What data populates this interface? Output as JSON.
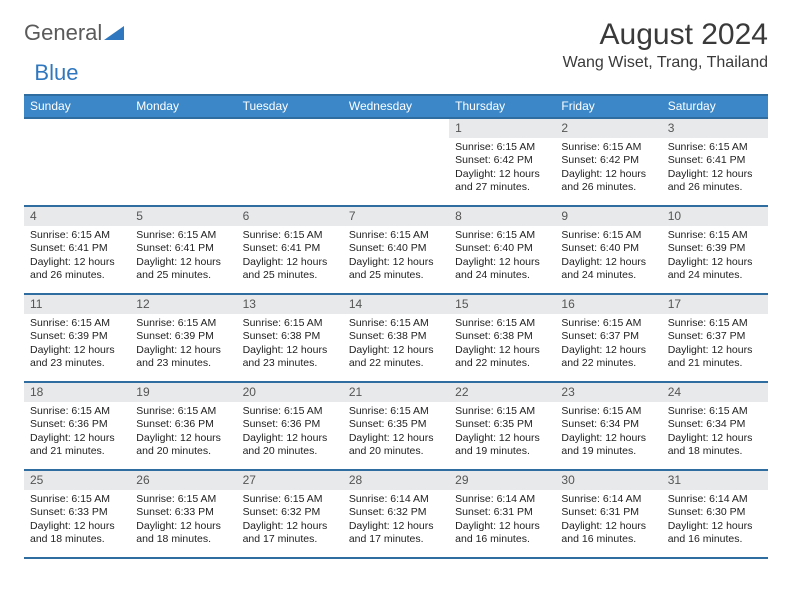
{
  "logo": {
    "text1": "General",
    "text2": "Blue",
    "triangle_color": "#2f78bf"
  },
  "title": {
    "month": "August 2024",
    "location": "Wang Wiset, Trang, Thailand"
  },
  "colors": {
    "header_bg": "#3b87c8",
    "header_border": "#2f6ca0",
    "daynum_bg": "#e7e9ea",
    "text": "#222222"
  },
  "weekdays": [
    "Sunday",
    "Monday",
    "Tuesday",
    "Wednesday",
    "Thursday",
    "Friday",
    "Saturday"
  ],
  "grid": {
    "leading_blanks": 4,
    "days": [
      {
        "n": 1,
        "sunrise": "6:15 AM",
        "sunset": "6:42 PM",
        "daylight": "12 hours and 27 minutes."
      },
      {
        "n": 2,
        "sunrise": "6:15 AM",
        "sunset": "6:42 PM",
        "daylight": "12 hours and 26 minutes."
      },
      {
        "n": 3,
        "sunrise": "6:15 AM",
        "sunset": "6:41 PM",
        "daylight": "12 hours and 26 minutes."
      },
      {
        "n": 4,
        "sunrise": "6:15 AM",
        "sunset": "6:41 PM",
        "daylight": "12 hours and 26 minutes."
      },
      {
        "n": 5,
        "sunrise": "6:15 AM",
        "sunset": "6:41 PM",
        "daylight": "12 hours and 25 minutes."
      },
      {
        "n": 6,
        "sunrise": "6:15 AM",
        "sunset": "6:41 PM",
        "daylight": "12 hours and 25 minutes."
      },
      {
        "n": 7,
        "sunrise": "6:15 AM",
        "sunset": "6:40 PM",
        "daylight": "12 hours and 25 minutes."
      },
      {
        "n": 8,
        "sunrise": "6:15 AM",
        "sunset": "6:40 PM",
        "daylight": "12 hours and 24 minutes."
      },
      {
        "n": 9,
        "sunrise": "6:15 AM",
        "sunset": "6:40 PM",
        "daylight": "12 hours and 24 minutes."
      },
      {
        "n": 10,
        "sunrise": "6:15 AM",
        "sunset": "6:39 PM",
        "daylight": "12 hours and 24 minutes."
      },
      {
        "n": 11,
        "sunrise": "6:15 AM",
        "sunset": "6:39 PM",
        "daylight": "12 hours and 23 minutes."
      },
      {
        "n": 12,
        "sunrise": "6:15 AM",
        "sunset": "6:39 PM",
        "daylight": "12 hours and 23 minutes."
      },
      {
        "n": 13,
        "sunrise": "6:15 AM",
        "sunset": "6:38 PM",
        "daylight": "12 hours and 23 minutes."
      },
      {
        "n": 14,
        "sunrise": "6:15 AM",
        "sunset": "6:38 PM",
        "daylight": "12 hours and 22 minutes."
      },
      {
        "n": 15,
        "sunrise": "6:15 AM",
        "sunset": "6:38 PM",
        "daylight": "12 hours and 22 minutes."
      },
      {
        "n": 16,
        "sunrise": "6:15 AM",
        "sunset": "6:37 PM",
        "daylight": "12 hours and 22 minutes."
      },
      {
        "n": 17,
        "sunrise": "6:15 AM",
        "sunset": "6:37 PM",
        "daylight": "12 hours and 21 minutes."
      },
      {
        "n": 18,
        "sunrise": "6:15 AM",
        "sunset": "6:36 PM",
        "daylight": "12 hours and 21 minutes."
      },
      {
        "n": 19,
        "sunrise": "6:15 AM",
        "sunset": "6:36 PM",
        "daylight": "12 hours and 20 minutes."
      },
      {
        "n": 20,
        "sunrise": "6:15 AM",
        "sunset": "6:36 PM",
        "daylight": "12 hours and 20 minutes."
      },
      {
        "n": 21,
        "sunrise": "6:15 AM",
        "sunset": "6:35 PM",
        "daylight": "12 hours and 20 minutes."
      },
      {
        "n": 22,
        "sunrise": "6:15 AM",
        "sunset": "6:35 PM",
        "daylight": "12 hours and 19 minutes."
      },
      {
        "n": 23,
        "sunrise": "6:15 AM",
        "sunset": "6:34 PM",
        "daylight": "12 hours and 19 minutes."
      },
      {
        "n": 24,
        "sunrise": "6:15 AM",
        "sunset": "6:34 PM",
        "daylight": "12 hours and 18 minutes."
      },
      {
        "n": 25,
        "sunrise": "6:15 AM",
        "sunset": "6:33 PM",
        "daylight": "12 hours and 18 minutes."
      },
      {
        "n": 26,
        "sunrise": "6:15 AM",
        "sunset": "6:33 PM",
        "daylight": "12 hours and 18 minutes."
      },
      {
        "n": 27,
        "sunrise": "6:15 AM",
        "sunset": "6:32 PM",
        "daylight": "12 hours and 17 minutes."
      },
      {
        "n": 28,
        "sunrise": "6:14 AM",
        "sunset": "6:32 PM",
        "daylight": "12 hours and 17 minutes."
      },
      {
        "n": 29,
        "sunrise": "6:14 AM",
        "sunset": "6:31 PM",
        "daylight": "12 hours and 16 minutes."
      },
      {
        "n": 30,
        "sunrise": "6:14 AM",
        "sunset": "6:31 PM",
        "daylight": "12 hours and 16 minutes."
      },
      {
        "n": 31,
        "sunrise": "6:14 AM",
        "sunset": "6:30 PM",
        "daylight": "12 hours and 16 minutes."
      }
    ]
  },
  "labels": {
    "sunrise": "Sunrise:",
    "sunset": "Sunset:",
    "daylight": "Daylight:"
  }
}
